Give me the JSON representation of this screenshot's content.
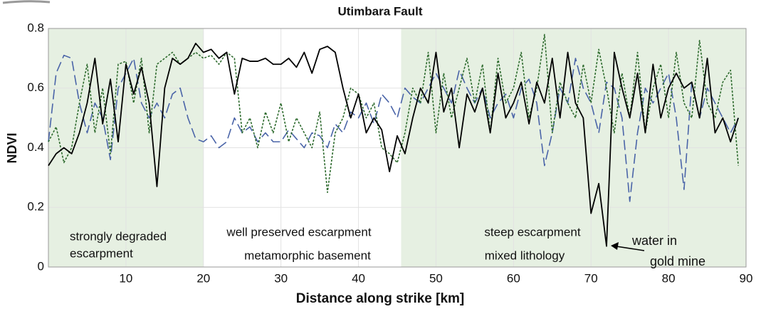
{
  "chart_data": {
    "type": "line",
    "title": "Utimbara Fault",
    "x_label": "Distance along strike [km]",
    "y_label": "NDVI",
    "x": [
      0,
      1,
      2,
      3,
      4,
      5,
      6,
      7,
      8,
      9,
      10,
      11,
      12,
      13,
      14,
      15,
      16,
      17,
      18,
      19,
      20,
      21,
      22,
      23,
      24,
      25,
      26,
      27,
      28,
      29,
      30,
      31,
      32,
      33,
      34,
      35,
      36,
      37,
      38,
      39,
      40,
      41,
      42,
      43,
      44,
      45,
      46,
      47,
      48,
      49,
      50,
      51,
      52,
      53,
      54,
      55,
      56,
      57,
      58,
      59,
      60,
      61,
      62,
      63,
      64,
      65,
      66,
      67,
      68,
      69,
      70,
      71,
      72,
      73,
      74,
      75,
      76,
      77,
      78,
      79,
      80,
      81,
      82,
      83,
      84,
      85,
      86,
      87,
      88,
      89
    ],
    "series": [
      {
        "color": "#4a64a8",
        "dash": "14 6",
        "values": [
          0.42,
          0.65,
          0.71,
          0.7,
          0.55,
          0.45,
          0.55,
          0.5,
          0.36,
          0.6,
          0.65,
          0.7,
          0.55,
          0.5,
          0.55,
          0.5,
          0.58,
          0.6,
          0.5,
          0.43,
          0.42,
          0.44,
          0.4,
          0.42,
          0.5,
          0.45,
          0.47,
          0.42,
          0.45,
          0.42,
          0.42,
          0.46,
          0.43,
          0.4,
          0.45,
          0.44,
          0.4,
          0.48,
          0.45,
          0.52,
          0.5,
          0.55,
          0.48,
          0.58,
          0.55,
          0.5,
          0.6,
          0.57,
          0.55,
          0.6,
          0.65,
          0.6,
          0.55,
          0.66,
          0.6,
          0.55,
          0.6,
          0.5,
          0.55,
          0.58,
          0.5,
          0.6,
          0.63,
          0.55,
          0.34,
          0.45,
          0.6,
          0.55,
          0.7,
          0.6,
          0.55,
          0.45,
          0.62,
          0.6,
          0.5,
          0.22,
          0.45,
          0.6,
          0.55,
          0.6,
          0.65,
          0.5,
          0.26,
          0.62,
          0.5,
          0.6,
          0.55,
          0.5,
          0.45,
          0.5
        ]
      },
      {
        "color": "#2e6b2e",
        "dash": "3 2",
        "values": [
          0.42,
          0.47,
          0.35,
          0.4,
          0.55,
          0.68,
          0.45,
          0.6,
          0.38,
          0.68,
          0.69,
          0.55,
          0.7,
          0.45,
          0.68,
          0.7,
          0.72,
          0.68,
          0.7,
          0.72,
          0.7,
          0.71,
          0.68,
          0.72,
          0.7,
          0.45,
          0.5,
          0.4,
          0.52,
          0.45,
          0.55,
          0.42,
          0.5,
          0.45,
          0.4,
          0.52,
          0.25,
          0.45,
          0.5,
          0.6,
          0.58,
          0.5,
          0.55,
          0.4,
          0.38,
          0.35,
          0.45,
          0.6,
          0.55,
          0.72,
          0.45,
          0.65,
          0.5,
          0.6,
          0.7,
          0.55,
          0.68,
          0.45,
          0.7,
          0.55,
          0.6,
          0.72,
          0.5,
          0.6,
          0.78,
          0.45,
          0.62,
          0.55,
          0.5,
          0.68,
          0.55,
          0.73,
          0.6,
          0.45,
          0.65,
          0.5,
          0.72,
          0.45,
          0.6,
          0.68,
          0.5,
          0.72,
          0.55,
          0.5,
          0.76,
          0.55,
          0.5,
          0.62,
          0.66,
          0.34
        ]
      },
      {
        "color": "#000000",
        "dash": "none",
        "values": [
          0.34,
          0.38,
          0.4,
          0.38,
          0.45,
          0.55,
          0.7,
          0.48,
          0.63,
          0.42,
          0.68,
          0.58,
          0.67,
          0.55,
          0.27,
          0.6,
          0.7,
          0.68,
          0.7,
          0.75,
          0.72,
          0.73,
          0.7,
          0.72,
          0.58,
          0.7,
          0.69,
          0.69,
          0.7,
          0.68,
          0.68,
          0.7,
          0.67,
          0.72,
          0.65,
          0.73,
          0.74,
          0.72,
          0.6,
          0.5,
          0.58,
          0.45,
          0.5,
          0.46,
          0.32,
          0.44,
          0.38,
          0.5,
          0.6,
          0.55,
          0.72,
          0.52,
          0.6,
          0.4,
          0.58,
          0.52,
          0.6,
          0.45,
          0.65,
          0.5,
          0.55,
          0.62,
          0.48,
          0.62,
          0.55,
          0.7,
          0.5,
          0.72,
          0.55,
          0.5,
          0.18,
          0.28,
          0.07,
          0.72,
          0.6,
          0.5,
          0.65,
          0.45,
          0.68,
          0.5,
          0.6,
          0.65,
          0.6,
          0.62,
          0.5,
          0.7,
          0.45,
          0.5,
          0.42,
          0.5
        ]
      }
    ],
    "shaded_regions": [
      [
        0,
        20
      ],
      [
        45.5,
        90
      ]
    ],
    "shade_color": "#e6f0e2",
    "annotations": [
      "strongly degraded",
      "escarpment",
      "well preserved escarpment",
      "metamorphic basement",
      "steep escarpment",
      "mixed lithology",
      "water in",
      "gold mine"
    ],
    "xlim": [
      0,
      90
    ],
    "xticks": [
      10,
      20,
      30,
      40,
      50,
      60,
      70,
      80,
      90
    ],
    "ylim": [
      0,
      0.8
    ],
    "yticks": [
      0,
      0.2,
      0.4,
      0.6,
      0.8
    ],
    "grid": true
  }
}
